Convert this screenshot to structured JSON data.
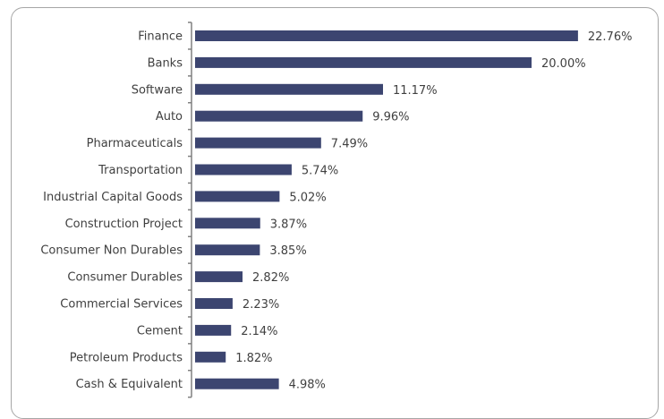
{
  "chart_data": {
    "type": "bar",
    "orientation": "horizontal",
    "title": "",
    "xlabel": "",
    "ylabel": "",
    "xlim": [
      0,
      25
    ],
    "grid": false,
    "legend": "none",
    "bar_color": "#3c4570",
    "categories": [
      "Finance",
      "Banks",
      "Software",
      "Auto",
      "Pharmaceuticals",
      "Transportation",
      "Industrial Capital Goods",
      "Construction Project",
      "Consumer Non Durables",
      "Consumer Durables",
      "Commercial Services",
      "Cement",
      "Petroleum Products",
      "Cash & Equivalent"
    ],
    "values": [
      22.76,
      20.0,
      11.17,
      9.96,
      7.49,
      5.74,
      5.02,
      3.87,
      3.85,
      2.82,
      2.23,
      2.14,
      1.82,
      4.98
    ],
    "value_labels": [
      "22.76%",
      "20.00%",
      "11.17%",
      "9.96%",
      "7.49%",
      "5.74%",
      "5.02%",
      "3.87%",
      "3.85%",
      "2.82%",
      "2.23%",
      "2.14%",
      "1.82%",
      "4.98%"
    ]
  }
}
